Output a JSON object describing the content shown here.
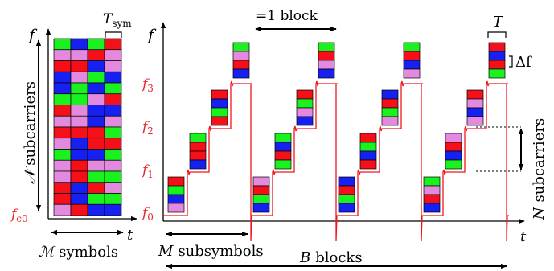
{
  "colors": {
    "red": "#f50f19",
    "green": "#1af21f",
    "blue": "#1620f0",
    "pink": "#e38ae0",
    "signal": "#f0161d",
    "axis": "#000000",
    "grid_border": "#000000"
  },
  "left_panel": {
    "axis_f": "f",
    "axis_t": "t",
    "t_sym_base": "T",
    "t_sym_sub": "sym",
    "subcarriers_sym": "𝒩",
    "subcarriers_label": "subcarriers",
    "fc0_base": "f",
    "fc0_sub": "c0",
    "symbols_sym": "ℳ",
    "symbols_label": "symbols",
    "grid": [
      [
        "green",
        "blue",
        "green",
        "red"
      ],
      [
        "pink",
        "pink",
        "red",
        "pink"
      ],
      [
        "red",
        "red",
        "blue",
        "pink"
      ],
      [
        "blue",
        "pink",
        "green",
        "blue"
      ],
      [
        "blue",
        "green",
        "blue",
        "green"
      ],
      [
        "green",
        "green",
        "pink",
        "red"
      ],
      [
        "red",
        "pink",
        "blue",
        "blue"
      ],
      [
        "pink",
        "pink",
        "blue",
        "pink"
      ],
      [
        "red",
        "red",
        "red",
        "green"
      ],
      [
        "pink",
        "blue",
        "red",
        "red"
      ],
      [
        "green",
        "blue",
        "blue",
        "green"
      ],
      [
        "pink",
        "red",
        "pink",
        "pink"
      ],
      [
        "pink",
        "red",
        "green",
        "green"
      ],
      [
        "red",
        "blue",
        "red",
        "pink"
      ],
      [
        "red",
        "blue",
        "green",
        "green"
      ],
      [
        "pink",
        "red",
        "blue",
        "blue"
      ]
    ]
  },
  "right_panel": {
    "axis_f": "f",
    "axis_t": "t",
    "f_labels": [
      {
        "base": "f",
        "sub": "3"
      },
      {
        "base": "f",
        "sub": "2"
      },
      {
        "base": "f",
        "sub": "1"
      },
      {
        "base": "f",
        "sub": "0"
      }
    ],
    "block_label": "=1 block",
    "T_label": "T",
    "delta_f_label": "Δf",
    "N_sym": "N",
    "N_label": "subcarriers",
    "M_sym": "M",
    "M_label": "subsymbols",
    "B_sym": "B",
    "B_label": "blocks",
    "blocks": [
      [
        [
          "red",
          "green",
          "blue",
          "pink"
        ],
        [
          "green",
          "red",
          "red",
          "blue"
        ],
        [
          "red",
          "blue",
          "green",
          "red"
        ],
        [
          "green",
          "pink",
          "red",
          "blue"
        ]
      ],
      [
        [
          "pink",
          "red",
          "green",
          "blue"
        ],
        [
          "green",
          "blue",
          "red",
          "green"
        ],
        [
          "red",
          "green",
          "pink",
          "blue"
        ],
        [
          "green",
          "red",
          "pink",
          "blue"
        ]
      ],
      [
        [
          "blue",
          "red",
          "green",
          "blue"
        ],
        [
          "red",
          "green",
          "blue",
          "red"
        ],
        [
          "blue",
          "red",
          "green",
          "pink"
        ],
        [
          "green",
          "red",
          "blue",
          "pink"
        ]
      ],
      [
        [
          "green",
          "pink",
          "red",
          "blue"
        ],
        [
          "pink",
          "red",
          "blue",
          "green"
        ],
        [
          "red",
          "pink",
          "blue",
          "pink"
        ],
        [
          "red",
          "blue",
          "red",
          "green"
        ]
      ]
    ]
  }
}
